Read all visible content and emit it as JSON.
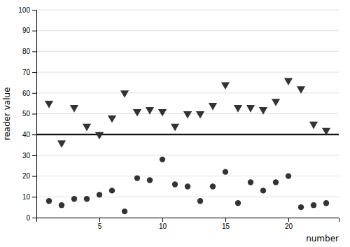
{
  "chart_data": {
    "type": "scatter",
    "xlabel": "number",
    "ylabel": "reader value",
    "x": [
      1,
      2,
      3,
      4,
      5,
      6,
      7,
      8,
      9,
      10,
      11,
      12,
      13,
      14,
      15,
      16,
      17,
      18,
      19,
      20,
      21,
      22,
      23
    ],
    "series": [
      {
        "color": "#333333",
        "marker": "circle",
        "values": [
          8,
          6,
          9,
          9,
          11,
          13,
          3,
          19,
          18,
          28,
          16,
          15,
          8,
          15,
          22,
          7,
          17,
          13,
          17,
          20,
          5,
          6,
          7
        ]
      },
      {
        "color": "#333333",
        "marker": "triangle-down",
        "values": [
          55,
          36,
          53,
          44,
          40,
          48,
          60,
          51,
          52,
          51,
          44,
          50,
          50,
          54,
          64,
          53,
          53,
          52,
          56,
          66,
          62,
          45,
          42
        ]
      }
    ],
    "reference_line": {
      "value": 40,
      "color": "#000000"
    },
    "xlim": [
      0,
      24
    ],
    "xticks": [
      5,
      10,
      15,
      20
    ],
    "ylim": [
      0,
      100
    ],
    "yticks": [
      0,
      10,
      20,
      30,
      40,
      50,
      60,
      70,
      80,
      90,
      100
    ],
    "grid": "y"
  }
}
